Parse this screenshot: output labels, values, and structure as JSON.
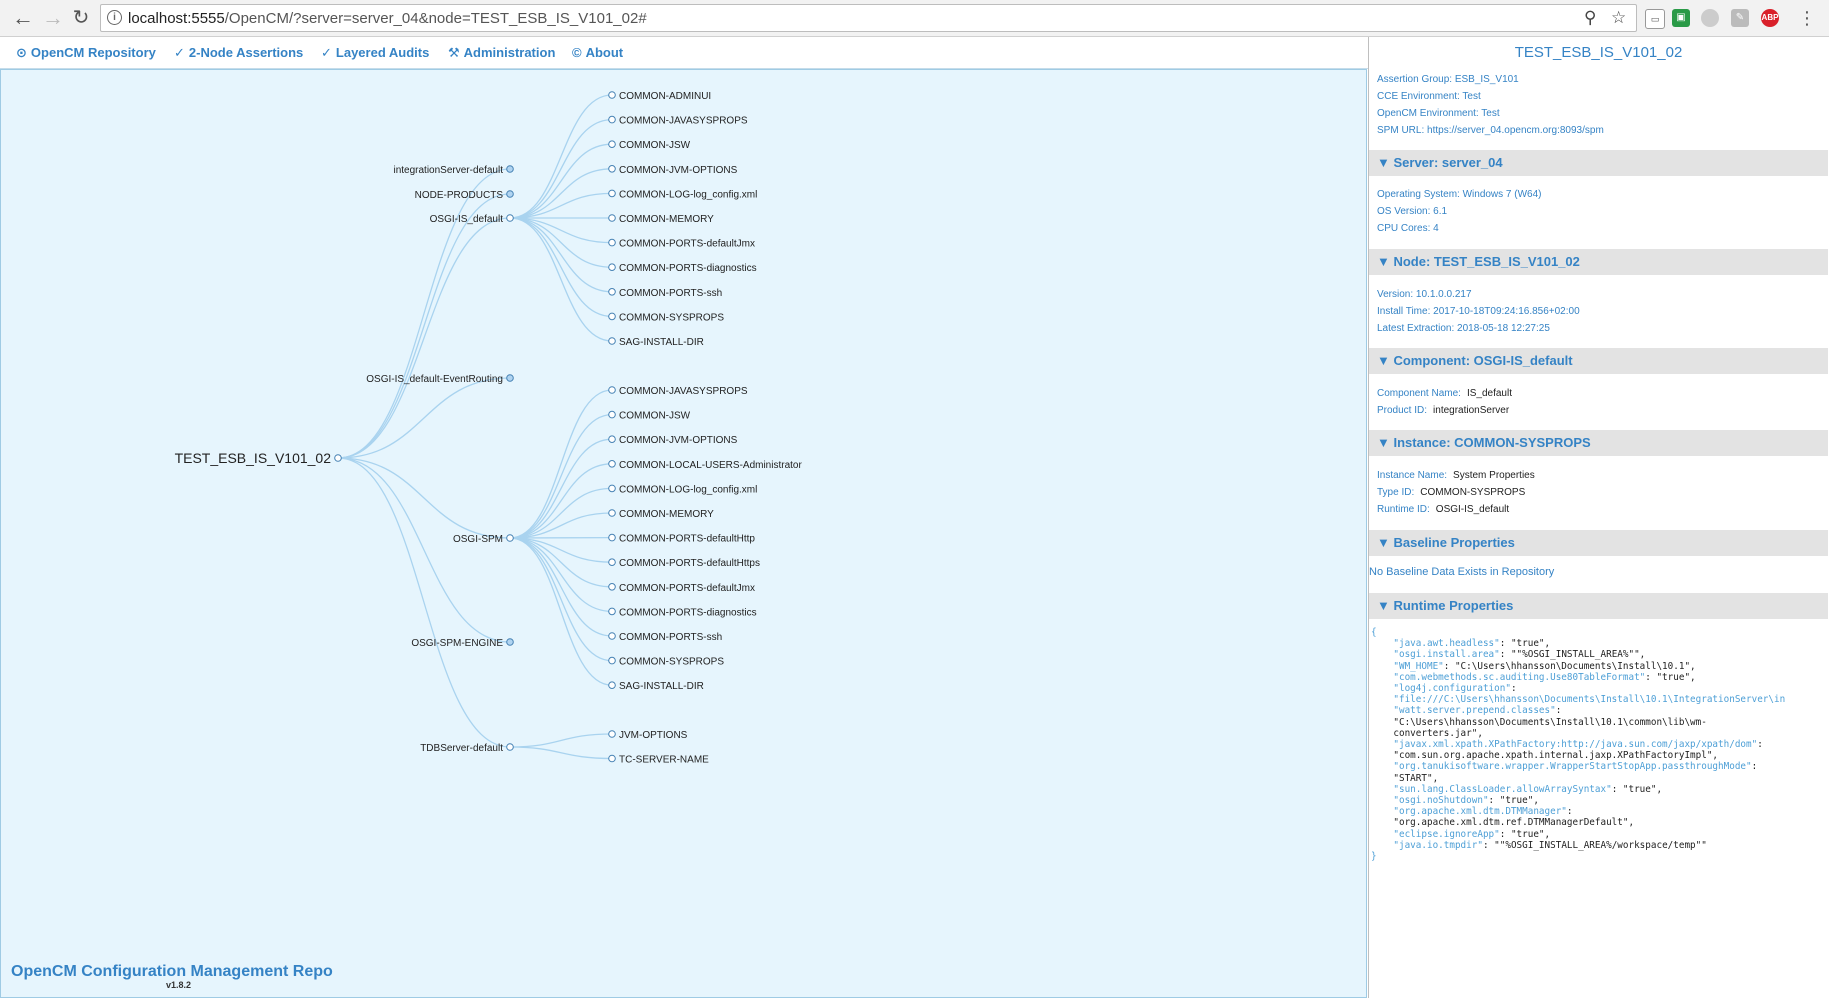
{
  "browser": {
    "url_host": "localhost:5555",
    "url_path": "/OpenCM/?server=server_04&node=TEST_ESB_IS_V101_02#"
  },
  "nav": {
    "items": [
      {
        "icon": "⊙",
        "label": "OpenCM Repository"
      },
      {
        "icon": "✓",
        "label": "2-Node Assertions"
      },
      {
        "icon": "✓",
        "label": "Layered Audits"
      },
      {
        "icon": "⚒",
        "label": "Administration"
      },
      {
        "icon": "©",
        "label": "About"
      }
    ]
  },
  "tree": {
    "root": "TEST_ESB_IS_V101_02",
    "components": [
      {
        "label": "integrationServer-default",
        "collapsed": true,
        "children": []
      },
      {
        "label": "NODE-PRODUCTS",
        "collapsed": true,
        "children": []
      },
      {
        "label": "OSGI-IS_default",
        "collapsed": false,
        "children": [
          "COMMON-ADMINUI",
          "COMMON-JAVASYSPROPS",
          "COMMON-JSW",
          "COMMON-JVM-OPTIONS",
          "COMMON-LOG-log_config.xml",
          "COMMON-MEMORY",
          "COMMON-PORTS-defaultJmx",
          "COMMON-PORTS-diagnostics",
          "COMMON-PORTS-ssh",
          "COMMON-SYSPROPS",
          "SAG-INSTALL-DIR"
        ]
      },
      {
        "label": "OSGI-IS_default-EventRouting",
        "collapsed": true,
        "children": []
      },
      {
        "label": "OSGI-SPM",
        "collapsed": false,
        "children": [
          "COMMON-JAVASYSPROPS",
          "COMMON-JSW",
          "COMMON-JVM-OPTIONS",
          "COMMON-LOCAL-USERS-Administrator",
          "COMMON-LOG-log_config.xml",
          "COMMON-MEMORY",
          "COMMON-PORTS-defaultHttp",
          "COMMON-PORTS-defaultHttps",
          "COMMON-PORTS-defaultJmx",
          "COMMON-PORTS-diagnostics",
          "COMMON-PORTS-ssh",
          "COMMON-SYSPROPS",
          "SAG-INSTALL-DIR"
        ]
      },
      {
        "label": "OSGI-SPM-ENGINE",
        "collapsed": true,
        "children": []
      },
      {
        "label": "TDBServer-default",
        "collapsed": false,
        "children": [
          "JVM-OPTIONS",
          "TC-SERVER-NAME"
        ]
      }
    ]
  },
  "footer": {
    "title": "OpenCM Configuration Management Repo",
    "version": "v1.8.2"
  },
  "side": {
    "title": "TEST_ESB_IS_V101_02",
    "group_info": [
      "Assertion Group: ESB_IS_V101",
      "CCE Environment: Test",
      "OpenCM Environment: Test",
      "SPM URL: https://server_04.opencm.org:8093/spm"
    ],
    "server": {
      "header": "▼ Server: server_04",
      "lines": [
        "Operating System: Windows 7 (W64)",
        "OS Version: 6.1",
        "CPU Cores: 4"
      ]
    },
    "node": {
      "header": "▼ Node: TEST_ESB_IS_V101_02",
      "lines": [
        "Version: 10.1.0.0.217",
        "Install Time: 2017-10-18T09:24:16.856+02:00",
        "Latest Extraction: 2018-05-18 12:27:25"
      ]
    },
    "component": {
      "header": "▼ Component: OSGI-IS_default",
      "rows": [
        {
          "k": "Component Name:",
          "v": "IS_default"
        },
        {
          "k": "Product ID:",
          "v": "integrationServer"
        }
      ]
    },
    "instance": {
      "header": "▼ Instance: COMMON-SYSPROPS",
      "rows": [
        {
          "k": "Instance Name:",
          "v": "System Properties"
        },
        {
          "k": "Type ID:",
          "v": "COMMON-SYSPROPS"
        },
        {
          "k": "Runtime ID:",
          "v": "OSGI-IS_default"
        }
      ]
    },
    "baseline": {
      "header": "▼ Baseline Properties",
      "message": "No Baseline Data Exists in Repository"
    },
    "runtime": {
      "header": "▼ Runtime Properties",
      "json_lines": [
        [
          [
            "b",
            "{"
          ]
        ],
        [
          [
            "t",
            "    "
          ],
          [
            "k",
            "\"java.awt.headless\""
          ],
          [
            "t",
            ": \"true\","
          ]
        ],
        [
          [
            "t",
            "    "
          ],
          [
            "k",
            "\"osgi.install.area\""
          ],
          [
            "t",
            ": \"\"%OSGI_INSTALL_AREA%\"\","
          ]
        ],
        [
          [
            "t",
            "    "
          ],
          [
            "k",
            "\"WM_HOME\""
          ],
          [
            "t",
            ": \"C:\\Users\\hhansson\\Documents\\Install\\10.1\","
          ]
        ],
        [
          [
            "t",
            "    "
          ],
          [
            "k",
            "\"com.webmethods.sc.auditing.Use80TableFormat\""
          ],
          [
            "t",
            ": \"true\","
          ]
        ],
        [
          [
            "t",
            "    "
          ],
          [
            "k",
            "\"log4j.configuration\""
          ],
          [
            "t",
            ":"
          ]
        ],
        [
          [
            "t",
            "    "
          ],
          [
            "k",
            "\"file:///C:\\Users\\hhansson\\Documents\\Install\\10.1\\IntegrationServer\\in"
          ]
        ],
        [
          [
            "t",
            "    "
          ],
          [
            "k",
            "\"watt.server.prepend.classes\""
          ],
          [
            "t",
            ":"
          ]
        ],
        [
          [
            "t",
            "    \"C:\\Users\\hhansson\\Documents\\Install\\10.1\\common\\lib\\wm-"
          ]
        ],
        [
          [
            "t",
            "    converters.jar\","
          ]
        ],
        [
          [
            "t",
            "    "
          ],
          [
            "k",
            "\"javax.xml.xpath.XPathFactory:http://java.sun.com/jaxp/xpath/dom\""
          ],
          [
            "t",
            ":"
          ]
        ],
        [
          [
            "t",
            "    \"com.sun.org.apache.xpath.internal.jaxp.XPathFactoryImpl\","
          ]
        ],
        [
          [
            "t",
            "    "
          ],
          [
            "k",
            "\"org.tanukisoftware.wrapper.WrapperStartStopApp.passthroughMode\""
          ],
          [
            "t",
            ":"
          ]
        ],
        [
          [
            "t",
            "    \"START\","
          ]
        ],
        [
          [
            "t",
            "    "
          ],
          [
            "k",
            "\"sun.lang.ClassLoader.allowArraySyntax\""
          ],
          [
            "t",
            ": \"true\","
          ]
        ],
        [
          [
            "t",
            "    "
          ],
          [
            "k",
            "\"osgi.noShutdown\""
          ],
          [
            "t",
            ": \"true\","
          ]
        ],
        [
          [
            "t",
            "    "
          ],
          [
            "k",
            "\"org.apache.xml.dtm.DTMManager\""
          ],
          [
            "t",
            ":"
          ]
        ],
        [
          [
            "t",
            "    \"org.apache.xml.dtm.ref.DTMManagerDefault\","
          ]
        ],
        [
          [
            "t",
            "    "
          ],
          [
            "k",
            "\"eclipse.ignoreApp\""
          ],
          [
            "t",
            ": \"true\","
          ]
        ],
        [
          [
            "t",
            "    "
          ],
          [
            "k",
            "\"java.io.tmpdir\""
          ],
          [
            "t",
            ": \"\"%OSGI_INSTALL_AREA%/workspace/temp\"\""
          ]
        ],
        [
          [
            "b",
            "}"
          ]
        ]
      ]
    }
  },
  "colors": {
    "accent": "#3583c5",
    "tree_bg": "#e6f5fd",
    "link_stroke": "#a9d3ef",
    "collapsed_node_fill": "#b0d4f1",
    "node_stroke": "#4682b4"
  }
}
